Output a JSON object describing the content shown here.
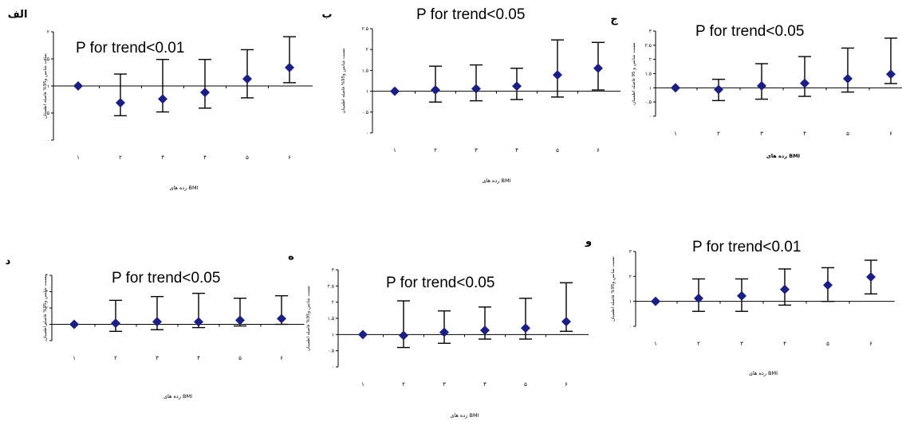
{
  "chart_data": [
    {
      "type": "scatter",
      "panel_letter": "الف",
      "annotation": "P for trend<0.01",
      "ylabel": "نسبت شانس و95% فاصله اطمینان",
      "xlabel": "رده های BMI",
      "categories": [
        "۱",
        "۲",
        "۳",
        "۴",
        "۵",
        "۶"
      ],
      "yticks": [
        "۰",
        "۰.۵",
        "۱",
        "۱.۵",
        "۲"
      ],
      "ylim": [
        0,
        2
      ],
      "points": [
        {
          "x": "۱",
          "y": 1.0,
          "lo": null,
          "hi": null
        },
        {
          "x": "۲",
          "y": 0.69,
          "lo": 0.45,
          "hi": 1.22
        },
        {
          "x": "۳",
          "y": 0.76,
          "lo": 0.52,
          "hi": 1.49
        },
        {
          "x": "۴",
          "y": 0.88,
          "lo": 0.59,
          "hi": 1.49
        },
        {
          "x": "۵",
          "y": 1.13,
          "lo": 0.78,
          "hi": 1.67
        },
        {
          "x": "۶",
          "y": 1.34,
          "lo": 1.06,
          "hi": 1.91
        }
      ]
    },
    {
      "type": "scatter",
      "panel_letter": "ب",
      "annotation": "P for trend<0.05",
      "ylabel": "نسبت شانس و95% فاصله اطمینان",
      "xlabel": "رده های BMI",
      "categories": [
        "۱",
        "۲",
        "۳",
        "۴",
        "۵",
        "۶"
      ],
      "yticks": [
        "۰",
        "۰.۵",
        "۱",
        "۱.۵",
        "۲",
        "۲.۵"
      ],
      "ylim": [
        0,
        2.5
      ],
      "points": [
        {
          "x": "۱",
          "y": 1.0,
          "lo": null,
          "hi": null
        },
        {
          "x": "۲",
          "y": 1.03,
          "lo": 0.74,
          "hi": 1.6
        },
        {
          "x": "۳",
          "y": 1.06,
          "lo": 0.77,
          "hi": 1.63
        },
        {
          "x": "۴",
          "y": 1.12,
          "lo": 0.8,
          "hi": 1.55
        },
        {
          "x": "۵",
          "y": 1.39,
          "lo": 0.86,
          "hi": 2.23
        },
        {
          "x": "۶",
          "y": 1.55,
          "lo": 1.03,
          "hi": 2.17
        }
      ]
    },
    {
      "type": "scatter",
      "panel_letter": "ج",
      "annotation": "P for trend<0.05",
      "ylabel": "نسبت شانس و 95 فاصله اطمینان",
      "xlabel": "رده های BMI",
      "xlabel_bold": true,
      "categories": [
        "۱",
        "۲",
        "۳",
        "۴",
        "۵",
        "۶"
      ],
      "yticks": [
        "۰",
        "۰.۵",
        "۱",
        "۱.۵",
        "۲",
        "۲.۵",
        "۳"
      ],
      "ylim": [
        0,
        3
      ],
      "points": [
        {
          "x": "۱",
          "y": 1.0,
          "lo": null,
          "hi": null
        },
        {
          "x": "۲",
          "y": 0.94,
          "lo": 0.55,
          "hi": 1.3
        },
        {
          "x": "۳",
          "y": 1.07,
          "lo": 0.6,
          "hi": 1.85
        },
        {
          "x": "۴",
          "y": 1.16,
          "lo": 0.7,
          "hi": 2.1
        },
        {
          "x": "۵",
          "y": 1.32,
          "lo": 0.85,
          "hi": 2.4
        },
        {
          "x": "۶",
          "y": 1.48,
          "lo": 1.15,
          "hi": 2.75
        }
      ]
    },
    {
      "type": "scatter",
      "panel_letter": "د",
      "annotation": "P for trend<0.05",
      "ylabel": "نسبت شانس و95% فاصله اطمینان",
      "xlabel": "رده های BMI",
      "categories": [
        "۱",
        "۲",
        "۳",
        "۴",
        "۵",
        "۶"
      ],
      "yticks": [
        "۰",
        "۱",
        "۲",
        "۳",
        "۴"
      ],
      "ylim": [
        0,
        4
      ],
      "points": [
        {
          "x": "۱",
          "y": 1.0,
          "lo": null,
          "hi": null
        },
        {
          "x": "۲",
          "y": 1.07,
          "lo": 0.57,
          "hi": 2.47
        },
        {
          "x": "۳",
          "y": 1.16,
          "lo": 0.67,
          "hi": 2.7
        },
        {
          "x": "۴",
          "y": 1.15,
          "lo": 0.8,
          "hi": 2.9
        },
        {
          "x": "۵",
          "y": 1.25,
          "lo": 0.9,
          "hi": 2.6
        },
        {
          "x": "۶",
          "y": 1.35,
          "lo": 1.0,
          "hi": 2.75
        }
      ]
    },
    {
      "type": "scatter",
      "panel_letter": "ه",
      "annotation": "P for trend<0.05",
      "ylabel": "نسبت شانس و95% فاصله اطمینان",
      "xlabel": "رده های BMI",
      "categories": [
        "۱",
        "۲",
        "۳",
        "۴",
        "۵",
        "۶"
      ],
      "yticks": [
        "۰",
        "۰.۵",
        "۱",
        "۱.۵",
        "۲",
        "۲.۵",
        "۳"
      ],
      "ylim": [
        0,
        3
      ],
      "points": [
        {
          "x": "۱",
          "y": 1.0,
          "lo": null,
          "hi": null
        },
        {
          "x": "۲",
          "y": 0.97,
          "lo": 0.6,
          "hi": 2.04
        },
        {
          "x": "۳",
          "y": 1.07,
          "lo": 0.73,
          "hi": 1.73
        },
        {
          "x": "۴",
          "y": 1.13,
          "lo": 0.86,
          "hi": 1.85
        },
        {
          "x": "۵",
          "y": 1.2,
          "lo": 0.86,
          "hi": 2.12
        },
        {
          "x": "۶",
          "y": 1.4,
          "lo": 1.1,
          "hi": 2.6
        }
      ]
    },
    {
      "type": "scatter",
      "panel_letter": "و",
      "annotation": "P for trend<0.01",
      "ylabel": "نسبت شانس و95% فاصله اطمینان",
      "xlabel": "رده های BMI",
      "categories": [
        "۱",
        "۲",
        "۳",
        "۴",
        "۵",
        "۶"
      ],
      "yticks": [
        "۰",
        "۱",
        "۲",
        "۳"
      ],
      "ylim": [
        0,
        3
      ],
      "points": [
        {
          "x": "۱",
          "y": 1.0,
          "lo": null,
          "hi": null
        },
        {
          "x": "۲",
          "y": 1.12,
          "lo": 0.6,
          "hi": 1.9
        },
        {
          "x": "۳",
          "y": 1.22,
          "lo": 0.6,
          "hi": 1.9
        },
        {
          "x": "۴",
          "y": 1.48,
          "lo": 0.85,
          "hi": 2.3
        },
        {
          "x": "۵",
          "y": 1.65,
          "lo": 1.0,
          "hi": 2.35
        },
        {
          "x": "۶",
          "y": 1.98,
          "lo": 1.3,
          "hi": 2.65
        }
      ]
    }
  ],
  "colors": {
    "marker": "#1c1f7d",
    "line": "#000000"
  }
}
